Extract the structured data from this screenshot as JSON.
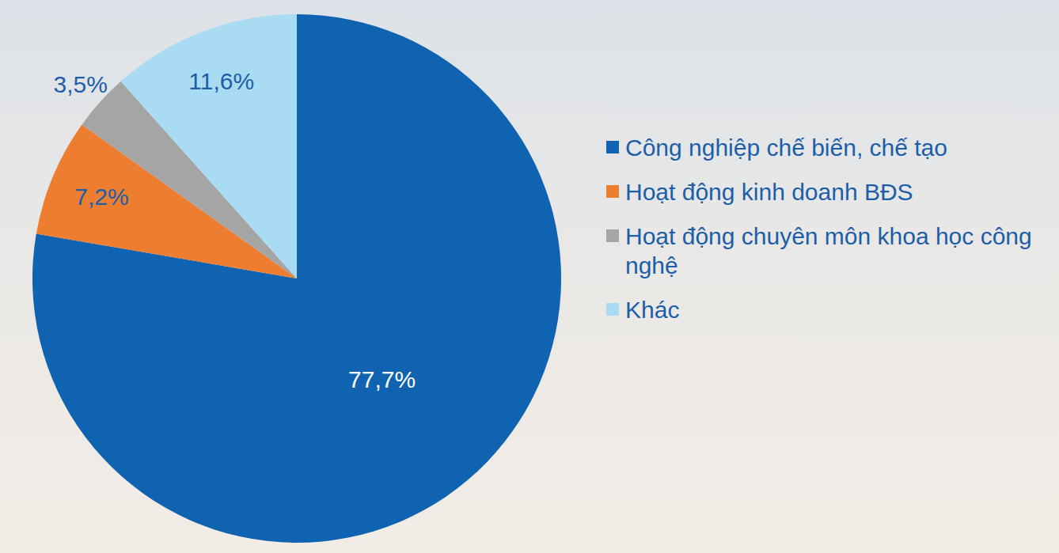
{
  "chart_data": {
    "type": "pie",
    "categories": [
      "Công nghiệp chế biến, chế tạo",
      "Hoạt động kinh doanh BĐS",
      "Hoạt động chuyên môn khoa học công nghệ",
      "Khác"
    ],
    "values": [
      77.7,
      7.2,
      3.5,
      11.6
    ],
    "value_labels": [
      "77,7%",
      "7,2%",
      "3,5%",
      "11,6%"
    ],
    "colors": [
      "#0f63b0",
      "#ed7d31",
      "#a5a5a5",
      "#a9dcf3"
    ],
    "data_labels": true,
    "legend": "right"
  }
}
